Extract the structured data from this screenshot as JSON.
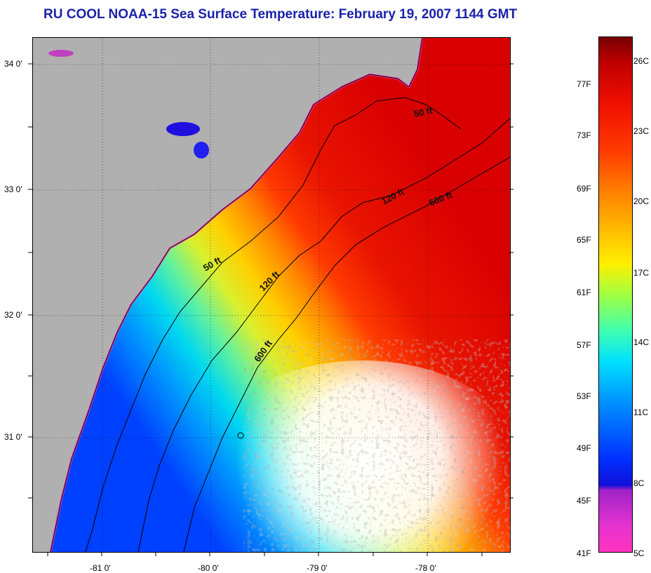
{
  "title": "RU COOL  NOAA-15  Sea Surface Temperature:  February 19, 2007 1144 GMT",
  "map": {
    "lat_labels": [
      "34 0'",
      "33 0'",
      "32 0'",
      "31 0'"
    ],
    "lon_labels": [
      "-81 0'",
      "-80 0'",
      "-79 0'",
      "-78 0'"
    ],
    "contour_labels": [
      "50 ft",
      "120 ft",
      "600 ft",
      "50 ft",
      "120 ft",
      "600 ft"
    ]
  },
  "colorbar": {
    "fahrenheit_labels": [
      "77F",
      "73F",
      "69F",
      "65F",
      "61F",
      "57F",
      "53F",
      "49F",
      "45F",
      "41F"
    ],
    "celsius_labels": [
      "26C",
      "23C",
      "20C",
      "17C",
      "14C",
      "11C",
      "8C",
      "5C"
    ],
    "colors": [
      "#ff33c0",
      "#a023c8",
      "#1010d8",
      "#0088ff",
      "#00e0ff",
      "#a0ff40",
      "#fff000",
      "#ff8000",
      "#f01000",
      "#780000"
    ]
  },
  "colors": {
    "title": "#1a22a8",
    "land": "#b0b0b0",
    "ocean_warm": "#e81a00",
    "ocean_cool": "#1a60ff"
  }
}
